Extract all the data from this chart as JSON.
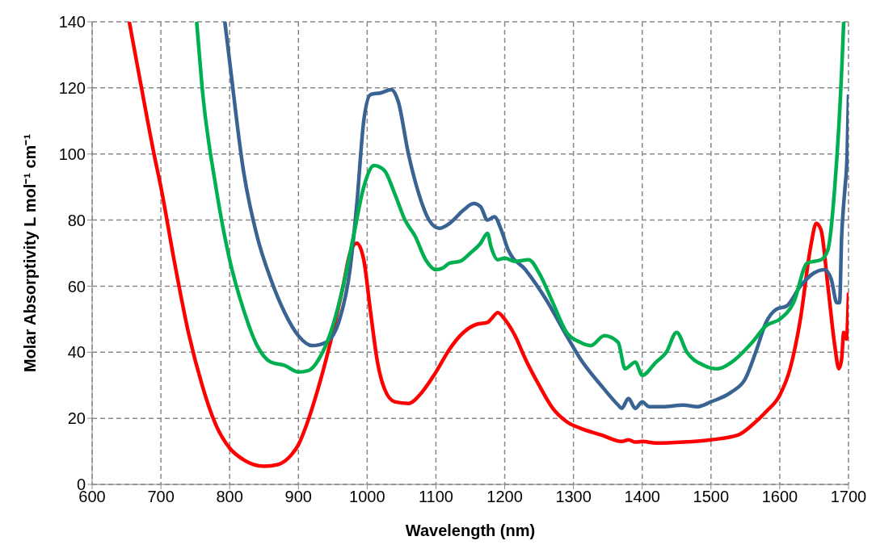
{
  "chart_data": {
    "type": "line",
    "xlabel": "Wavelength (nm)",
    "ylabel": "Molar Absorptivity L mol⁻¹ cm⁻¹",
    "xlim": [
      600,
      1700
    ],
    "xticks": [
      600,
      700,
      800,
      900,
      1000,
      1100,
      1200,
      1300,
      1400,
      1500,
      1600,
      1700
    ],
    "ylim": [
      0,
      140
    ],
    "yticks": [
      0,
      20,
      40,
      60,
      80,
      100,
      120,
      140
    ],
    "grid": true,
    "marker": "none",
    "line_style": "solid",
    "series": [
      {
        "color": "#ff0000",
        "x": [
          654,
          670,
          690,
          700,
          720,
          740,
          760,
          780,
          800,
          820,
          850,
          870,
          890,
          900,
          910,
          930,
          950,
          965,
          975,
          985,
          995,
          1005,
          1015,
          1025,
          1040,
          1060,
          1080,
          1100,
          1120,
          1140,
          1160,
          1175,
          1180,
          1190,
          1200,
          1215,
          1230,
          1250,
          1270,
          1290,
          1310,
          1340,
          1370,
          1380,
          1390,
          1400,
          1420,
          1460,
          1500,
          1540,
          1560,
          1580,
          1600,
          1615,
          1630,
          1645,
          1653,
          1660,
          1670,
          1680,
          1686,
          1690,
          1693,
          1697,
          1700
        ],
        "values": [
          140,
          122,
          100,
          90,
          67,
          46,
          30,
          18,
          11,
          7.5,
          5.5,
          6,
          9,
          12,
          17,
          30,
          46,
          60,
          70,
          73,
          68,
          52,
          37,
          29,
          25,
          24.5,
          28,
          34,
          41,
          46,
          48.5,
          49,
          50,
          52,
          50,
          45,
          38,
          30,
          23,
          19,
          17,
          15,
          13,
          13.5,
          12.8,
          13,
          12.5,
          12.8,
          13.5,
          15,
          18,
          22,
          27,
          35,
          50,
          72,
          79,
          77,
          60,
          42,
          35,
          38,
          46,
          44,
          58
        ]
      },
      {
        "color": "#386393",
        "x": [
          793,
          800,
          820,
          840,
          860,
          880,
          900,
          920,
          940,
          960,
          975,
          985,
          995,
          1005,
          1020,
          1035,
          1045,
          1060,
          1075,
          1090,
          1105,
          1120,
          1140,
          1155,
          1165,
          1175,
          1185,
          1195,
          1205,
          1230,
          1260,
          1290,
          1310,
          1340,
          1365,
          1370,
          1380,
          1390,
          1400,
          1410,
          1430,
          1460,
          1480,
          1500,
          1530,
          1550,
          1565,
          1580,
          1595,
          1610,
          1630,
          1650,
          1665,
          1675,
          1683,
          1687,
          1690,
          1693,
          1695,
          1698,
          1700
        ],
        "values": [
          140,
          128,
          95,
          75,
          62,
          52,
          45,
          42,
          43,
          50,
          65,
          85,
          110,
          118,
          118.5,
          119.5,
          116,
          100,
          88,
          80,
          77.5,
          79,
          83,
          85,
          84,
          80,
          81,
          77,
          71,
          65,
          56,
          45,
          38,
          30,
          24,
          23,
          26,
          23,
          25,
          23.5,
          23.5,
          24,
          23.5,
          25,
          28,
          32,
          40,
          49,
          53,
          54,
          60,
          64,
          65,
          62,
          55,
          55,
          75,
          85,
          90,
          100,
          118
        ]
      },
      {
        "color": "#00b050",
        "x": [
          752,
          760,
          780,
          800,
          820,
          840,
          860,
          880,
          900,
          915,
          930,
          950,
          965,
          980,
          995,
          1010,
          1025,
          1040,
          1055,
          1070,
          1085,
          1100,
          1110,
          1120,
          1135,
          1150,
          1165,
          1175,
          1180,
          1190,
          1200,
          1215,
          1235,
          1250,
          1270,
          1290,
          1310,
          1325,
          1345,
          1365,
          1375,
          1390,
          1400,
          1420,
          1435,
          1450,
          1465,
          1490,
          1510,
          1530,
          1560,
          1580,
          1600,
          1620,
          1640,
          1660,
          1670,
          1680,
          1690,
          1693
        ],
        "values": [
          140,
          120,
          90,
          68,
          53,
          42,
          37,
          36,
          34,
          34.5,
          38,
          48,
          60,
          75,
          90,
          96.5,
          95,
          88,
          80,
          75,
          68,
          65,
          65.5,
          67,
          67.5,
          70,
          73,
          76,
          72,
          68,
          68.5,
          67.5,
          68,
          64,
          55,
          46,
          43,
          42,
          45,
          43,
          35,
          37,
          33,
          37,
          40,
          46,
          40,
          36,
          35,
          37,
          43,
          48,
          50,
          55,
          67,
          68,
          71,
          90,
          125,
          140
        ]
      }
    ]
  }
}
